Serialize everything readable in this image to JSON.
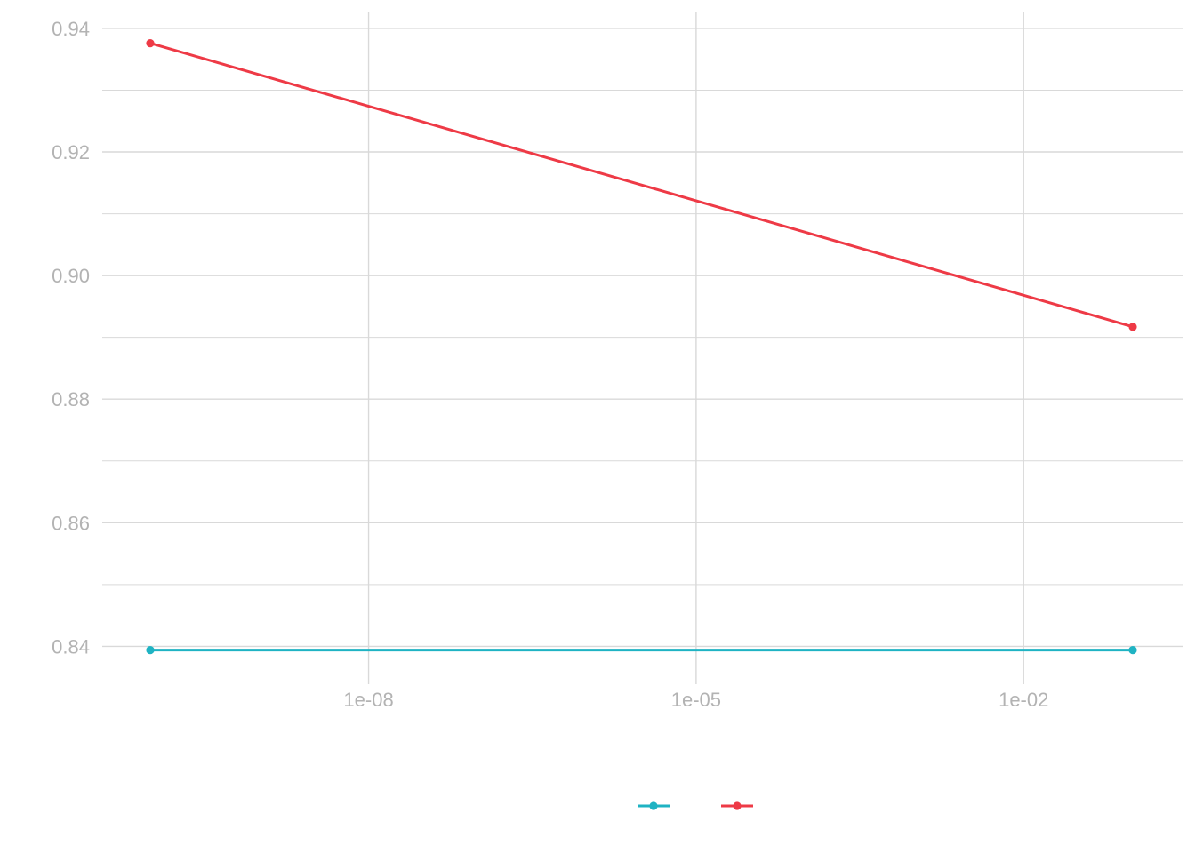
{
  "chart_data": {
    "type": "line",
    "title": "",
    "xlabel": "",
    "ylabel": "",
    "x_scale": "log10",
    "xlim": [
      1e-10,
      1.0
    ],
    "ylim": [
      0.8348,
      0.9424
    ],
    "x_ticks": [
      1e-08,
      1e-05,
      0.01
    ],
    "x_tick_labels": [
      "1e-08",
      "1e-05",
      "1e-02"
    ],
    "y_ticks": [
      0.84,
      0.86,
      0.88,
      0.9,
      0.92,
      0.94
    ],
    "y_tick_labels": [
      "0.84",
      "0.86",
      "0.88",
      "0.90",
      "0.92",
      "0.94"
    ],
    "y_minor_ticks": [
      0.85,
      0.87,
      0.89,
      0.91,
      0.93
    ],
    "grid": true,
    "legend_position": "bottom",
    "series": [
      {
        "color": "#1fb3c3",
        "x": [
          1e-10,
          0.1
        ],
        "y": [
          0.8394,
          0.8394
        ]
      },
      {
        "color": "#ee3a46",
        "x": [
          1e-10,
          0.1
        ],
        "y": [
          0.9376,
          0.8917
        ]
      }
    ]
  }
}
